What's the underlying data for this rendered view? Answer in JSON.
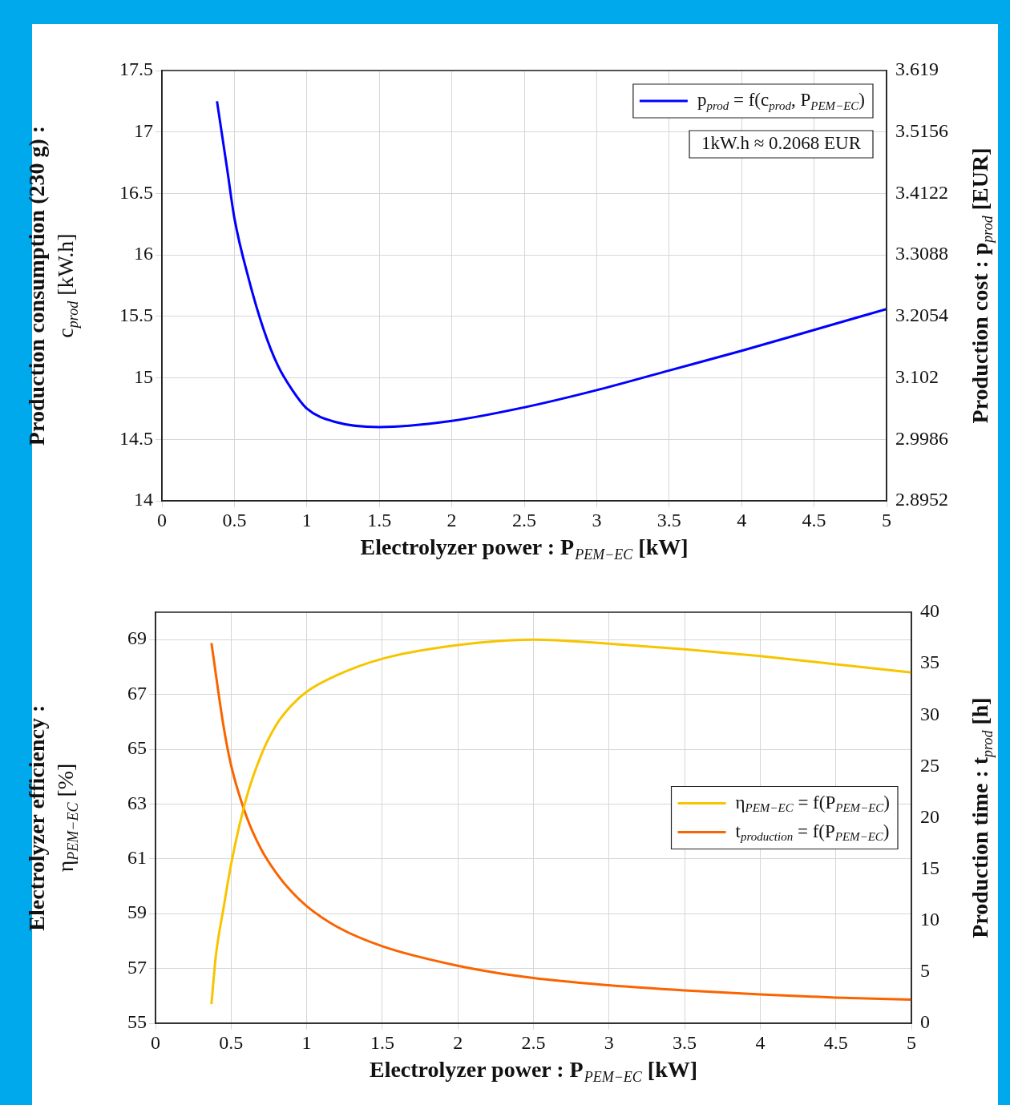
{
  "chart_data": [
    {
      "type": "line",
      "xlabel": "Electrolyzer power : P$_{PEM−EC}$ [kW]",
      "ylabel": "Production consumption (230 g) : c$_{prod}$ [kW.h]",
      "y2label": "Production cost : p$_{prod}$ [EUR]",
      "annotations": [
        "1kW.h ≈ 0.2068 EUR"
      ],
      "xlim": [
        0,
        5
      ],
      "xticks": [
        0,
        0.5,
        1,
        1.5,
        2,
        2.5,
        3,
        3.5,
        4,
        4.5,
        5
      ],
      "ylim": [
        14,
        17.5
      ],
      "yticks": [
        14,
        14.5,
        15,
        15.5,
        16,
        16.5,
        17,
        17.5
      ],
      "y2lim": [
        2.8952,
        3.619
      ],
      "y2ticks": [
        2.8952,
        2.9986,
        3.102,
        3.2054,
        3.3088,
        3.4122,
        3.5156,
        3.619
      ],
      "grid": true,
      "legend": "top right",
      "marker": "none",
      "series": [
        {
          "name": "p$_{prod}$ = f(c$_{prod}$, P$_{PEM−EC}$)",
          "color": "#0000ff",
          "x": [
            0.38,
            0.45,
            0.5,
            0.6,
            0.7,
            0.8,
            0.9,
            1,
            1.2,
            1.5,
            2,
            2.5,
            3,
            3.5,
            4,
            4.5,
            5
          ],
          "values": [
            17.25,
            16.7,
            16.3,
            15.8,
            15.4,
            15.1,
            14.9,
            14.75,
            14.64,
            14.6,
            14.65,
            14.76,
            14.9,
            15.06,
            15.22,
            15.39,
            15.56
          ]
        }
      ]
    },
    {
      "type": "line",
      "xlabel": "Electrolyzer power : P$_{PEM−EC}$ [kW]",
      "ylabel": "Electrolyzer efficiency : η$_{PEM−EC}$ [%]",
      "y2label": "Production time : t$_{prod}$ [h]",
      "xlim": [
        0,
        5
      ],
      "xticks": [
        0,
        0.5,
        1,
        1.5,
        2,
        2.5,
        3,
        3.5,
        4,
        4.5,
        5
      ],
      "ylim": [
        55,
        70
      ],
      "yticks": [
        55,
        57,
        59,
        61,
        63,
        65,
        67,
        69
      ],
      "y2lim": [
        0,
        40
      ],
      "y2ticks": [
        0,
        5,
        10,
        15,
        20,
        25,
        30,
        35,
        40
      ],
      "grid": true,
      "legend": "right",
      "marker": "none",
      "series": [
        {
          "name": "η$_{PEM−EC}$ = f(P$_{PEM−EC}$)",
          "color": "#f7c500",
          "x": [
            0.37,
            0.4,
            0.45,
            0.5,
            0.6,
            0.7,
            0.8,
            0.9,
            1,
            1.2,
            1.5,
            2,
            2.5,
            3,
            3.5,
            4,
            4.5,
            5
          ],
          "values": [
            55.7,
            57.5,
            59.2,
            60.8,
            63.2,
            64.8,
            65.9,
            66.6,
            67.1,
            67.7,
            68.3,
            68.8,
            69.0,
            68.85,
            68.65,
            68.4,
            68.1,
            67.8
          ]
        },
        {
          "name": "t$_{production}$ = f(P$_{PEM−EC}$)",
          "color": "#fa6400",
          "axis": "y2",
          "x": [
            0.37,
            0.45,
            0.5,
            0.6,
            0.7,
            0.8,
            0.9,
            1,
            1.2,
            1.5,
            2,
            2.5,
            3,
            3.5,
            4,
            4.5,
            5
          ],
          "values": [
            37,
            28.9,
            25.1,
            20.2,
            16.9,
            14.6,
            12.8,
            11.4,
            9.4,
            7.5,
            5.6,
            4.4,
            3.7,
            3.2,
            2.8,
            2.5,
            2.3
          ]
        }
      ]
    }
  ]
}
